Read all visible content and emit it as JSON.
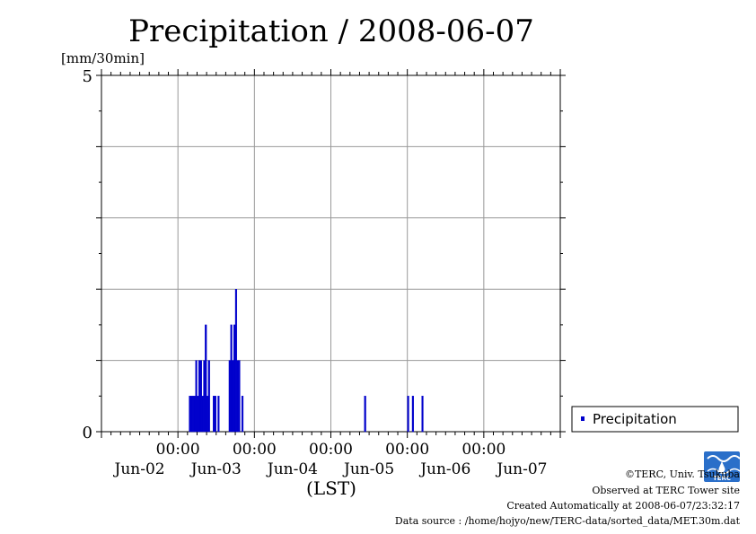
{
  "chart_data": {
    "type": "bar",
    "title": "Precipitation / 2008-06-07",
    "ylabel": "[mm/30min]",
    "xlabel": "(LST)",
    "ylim": [
      0,
      5
    ],
    "yticks": [
      0,
      5
    ],
    "x_time_ticks": [
      "00:00",
      "00:00",
      "00:00",
      "00:00",
      "00:00"
    ],
    "x_date_labels": [
      "Jun-02",
      "Jun-03",
      "Jun-04",
      "Jun-05",
      "Jun-06",
      "Jun-07"
    ],
    "grid": true,
    "legend_position": "right-bottom",
    "color": "#0000cc",
    "series": [
      {
        "name": "Precipitation",
        "points": [
          {
            "t": "2008-06-03 03:30",
            "v": 0.5
          },
          {
            "t": "2008-06-03 04:00",
            "v": 0.5
          },
          {
            "t": "2008-06-03 04:30",
            "v": 0.5
          },
          {
            "t": "2008-06-03 05:00",
            "v": 0.5
          },
          {
            "t": "2008-06-03 05:30",
            "v": 1.0
          },
          {
            "t": "2008-06-03 06:00",
            "v": 0.5
          },
          {
            "t": "2008-06-03 06:30",
            "v": 1.0
          },
          {
            "t": "2008-06-03 07:00",
            "v": 1.0
          },
          {
            "t": "2008-06-03 07:30",
            "v": 0.5
          },
          {
            "t": "2008-06-03 08:00",
            "v": 1.0
          },
          {
            "t": "2008-06-03 08:30",
            "v": 1.5
          },
          {
            "t": "2008-06-03 09:00",
            "v": 0.5
          },
          {
            "t": "2008-06-03 09:30",
            "v": 1.0
          },
          {
            "t": "2008-06-03 11:00",
            "v": 0.5
          },
          {
            "t": "2008-06-03 11:30",
            "v": 0.5
          },
          {
            "t": "2008-06-03 12:30",
            "v": 0.5
          },
          {
            "t": "2008-06-03 16:00",
            "v": 1.0
          },
          {
            "t": "2008-06-03 16:30",
            "v": 1.5
          },
          {
            "t": "2008-06-03 17:00",
            "v": 1.0
          },
          {
            "t": "2008-06-03 17:30",
            "v": 1.5
          },
          {
            "t": "2008-06-03 18:00",
            "v": 2.0
          },
          {
            "t": "2008-06-03 18:30",
            "v": 1.0
          },
          {
            "t": "2008-06-03 19:00",
            "v": 1.0
          },
          {
            "t": "2008-06-03 20:00",
            "v": 0.5
          },
          {
            "t": "2008-06-05 10:30",
            "v": 0.5
          },
          {
            "t": "2008-06-06 00:00",
            "v": 0.5
          },
          {
            "t": "2008-06-06 01:30",
            "v": 0.5
          },
          {
            "t": "2008-06-06 04:30",
            "v": 0.5
          }
        ]
      }
    ]
  },
  "credits": {
    "copyright": "©TERC, Univ. Tsukuba",
    "site": "Observed at TERC Tower site",
    "created": "Created Automatically at 2008-06-07/23:32:17",
    "source": "Data source : /home/hojyo/new/TERC-data/sorted_data/MET.30m.dat"
  },
  "logo": {
    "text": "TERC",
    "color": "#2a6fc9"
  }
}
